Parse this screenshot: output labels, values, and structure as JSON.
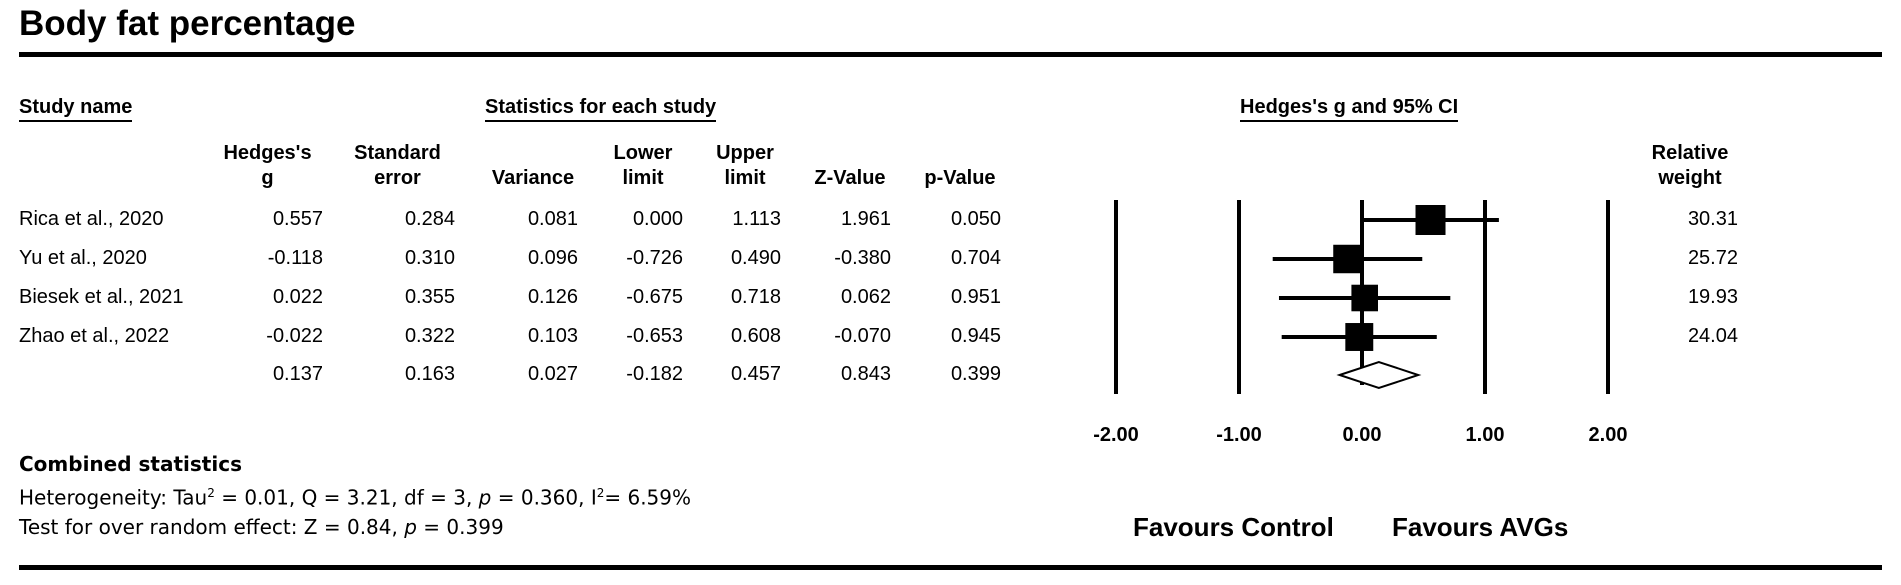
{
  "title": "Body fat percentage",
  "headers": {
    "study_name": "Study name",
    "statistics": "Statistics for each study",
    "plot": "Hedges's g and 95% CI"
  },
  "columns": {
    "hedges_g": "Hedges's\ng",
    "std_error": "Standard\nerror",
    "variance": "Variance",
    "lower": "Lower\nlimit",
    "upper": "Upper\nlimit",
    "z": "Z-Value",
    "p": "p-Value",
    "weight": "Relative\nweight"
  },
  "rows": [
    {
      "study": "Rica et al., 2020",
      "g": "0.557",
      "se": "0.284",
      "var": "0.081",
      "lower": "0.000",
      "upper": "1.113",
      "z": "1.961",
      "p": "0.050",
      "weight": "30.31"
    },
    {
      "study": "Yu et al., 2020",
      "g": "-0.118",
      "se": "0.310",
      "var": "0.096",
      "lower": "-0.726",
      "upper": "0.490",
      "z": "-0.380",
      "p": "0.704",
      "weight": "25.72"
    },
    {
      "study": "Biesek et al., 2021",
      "g": "0.022",
      "se": "0.355",
      "var": "0.126",
      "lower": "-0.675",
      "upper": "0.718",
      "z": "0.062",
      "p": "0.951",
      "weight": "19.93"
    },
    {
      "study": "Zhao et al., 2022",
      "g": "-0.022",
      "se": "0.322",
      "var": "0.103",
      "lower": "-0.653",
      "upper": "0.608",
      "z": "-0.070",
      "p": "0.945",
      "weight": "24.04"
    }
  ],
  "pooled": {
    "g": "0.137",
    "se": "0.163",
    "var": "0.027",
    "lower": "-0.182",
    "upper": "0.457",
    "z": "0.843",
    "p": "0.399"
  },
  "combined": {
    "heading": "Combined statistics",
    "het_prefix": "Heterogeneity: Tau",
    "het_middle": " = 0.01, Q = 3.21, df = 3, ",
    "het_p_label": "p",
    "het_p_value": " = 0.360, I",
    "het_i2": "= 6.59%",
    "test_prefix": "Test for over random effect: Z = 0.84, ",
    "test_p_label": "p",
    "test_p_value": " = 0.399",
    "superscript": "2"
  },
  "axis_ticks": [
    "-2.00",
    "-1.00",
    "0.00",
    "1.00",
    "2.00"
  ],
  "favours": {
    "left": "Favours Control",
    "right": "Favours AVGs"
  },
  "chart_data": {
    "type": "scatter",
    "title": "Hedges's g and 95% CI",
    "categories": [
      "Rica et al., 2020",
      "Yu et al., 2020",
      "Biesek et al., 2021",
      "Zhao et al., 2022"
    ],
    "series": [
      {
        "values": [
          0.557,
          -0.118,
          0.022,
          -0.022
        ],
        "lower": [
          0.0,
          -0.726,
          -0.675,
          -0.653
        ],
        "upper": [
          1.113,
          0.49,
          0.718,
          0.608
        ],
        "weight": [
          30.31,
          25.72,
          19.93,
          24.04
        ]
      }
    ],
    "pooled": {
      "value": 0.137,
      "lower": -0.182,
      "upper": 0.457
    },
    "xlim": [
      -2,
      2
    ],
    "reference_lines": [
      -2,
      -1,
      0,
      1,
      2
    ]
  }
}
